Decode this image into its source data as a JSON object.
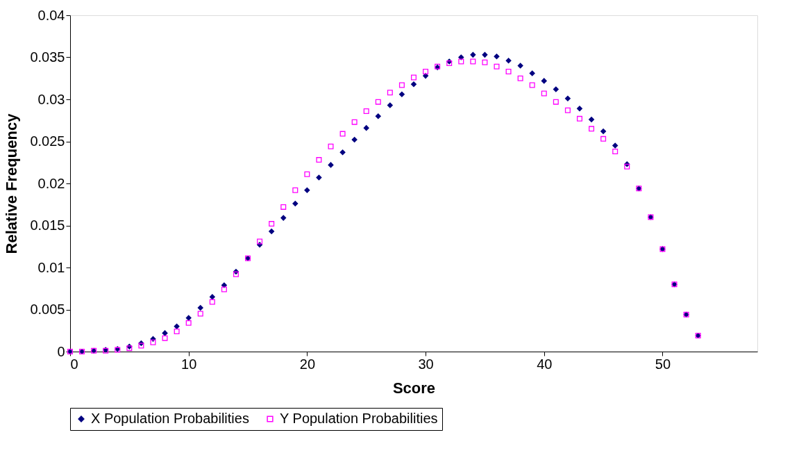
{
  "chart_data": {
    "type": "scatter",
    "xlabel": "Score",
    "ylabel": "Relative Frequency",
    "x": [
      0,
      1,
      2,
      3,
      4,
      5,
      6,
      7,
      8,
      9,
      10,
      11,
      12,
      13,
      14,
      15,
      16,
      17,
      18,
      19,
      20,
      21,
      22,
      23,
      24,
      25,
      26,
      27,
      28,
      29,
      30,
      31,
      32,
      33,
      34,
      35,
      36,
      37,
      38,
      39,
      40,
      41,
      42,
      43,
      44,
      45,
      46,
      47,
      48,
      49,
      50,
      51,
      52,
      53
    ],
    "series": [
      {
        "name": "X Population Probabilities",
        "color": "#000080",
        "marker": "diamond",
        "values": [
          0,
          0,
          0.0001,
          0.0002,
          0.0003,
          0.0006,
          0.001,
          0.0015,
          0.0022,
          0.003,
          0.004,
          0.0052,
          0.0065,
          0.0079,
          0.0095,
          0.0111,
          0.0127,
          0.0143,
          0.0159,
          0.0176,
          0.0192,
          0.0207,
          0.0222,
          0.0237,
          0.0252,
          0.0266,
          0.028,
          0.0293,
          0.0306,
          0.0318,
          0.0328,
          0.0338,
          0.0345,
          0.035,
          0.0353,
          0.0353,
          0.0351,
          0.0346,
          0.034,
          0.0331,
          0.0322,
          0.0312,
          0.0301,
          0.0289,
          0.0276,
          0.0262,
          0.0245,
          0.0223,
          0.0194,
          0.016,
          0.0122,
          0.008,
          0.0044,
          0.0019
        ]
      },
      {
        "name": "Y Population Probabilities",
        "color": "#ff00ff",
        "marker": "square",
        "values": [
          0,
          0,
          0.0001,
          0.0001,
          0.0002,
          0.0004,
          0.0007,
          0.0011,
          0.0016,
          0.0024,
          0.0034,
          0.0045,
          0.0059,
          0.0074,
          0.0092,
          0.0111,
          0.0131,
          0.0152,
          0.0172,
          0.0192,
          0.0211,
          0.0228,
          0.0244,
          0.0259,
          0.0273,
          0.0286,
          0.0297,
          0.0308,
          0.0317,
          0.0326,
          0.0333,
          0.0339,
          0.0343,
          0.0345,
          0.0345,
          0.0344,
          0.0339,
          0.0333,
          0.0325,
          0.0317,
          0.0307,
          0.0297,
          0.0287,
          0.0277,
          0.0265,
          0.0253,
          0.0238,
          0.022,
          0.0194,
          0.016,
          0.0122,
          0.008,
          0.0044,
          0.0019
        ]
      }
    ],
    "xlim": [
      0,
      58
    ],
    "xticks": [
      0,
      10,
      20,
      30,
      40,
      50
    ],
    "ylim": [
      0,
      0.04
    ],
    "yticks": [
      0,
      0.005,
      0.01,
      0.015,
      0.02,
      0.025,
      0.03,
      0.035,
      0.04
    ],
    "grid": false,
    "legend": "bottom"
  }
}
